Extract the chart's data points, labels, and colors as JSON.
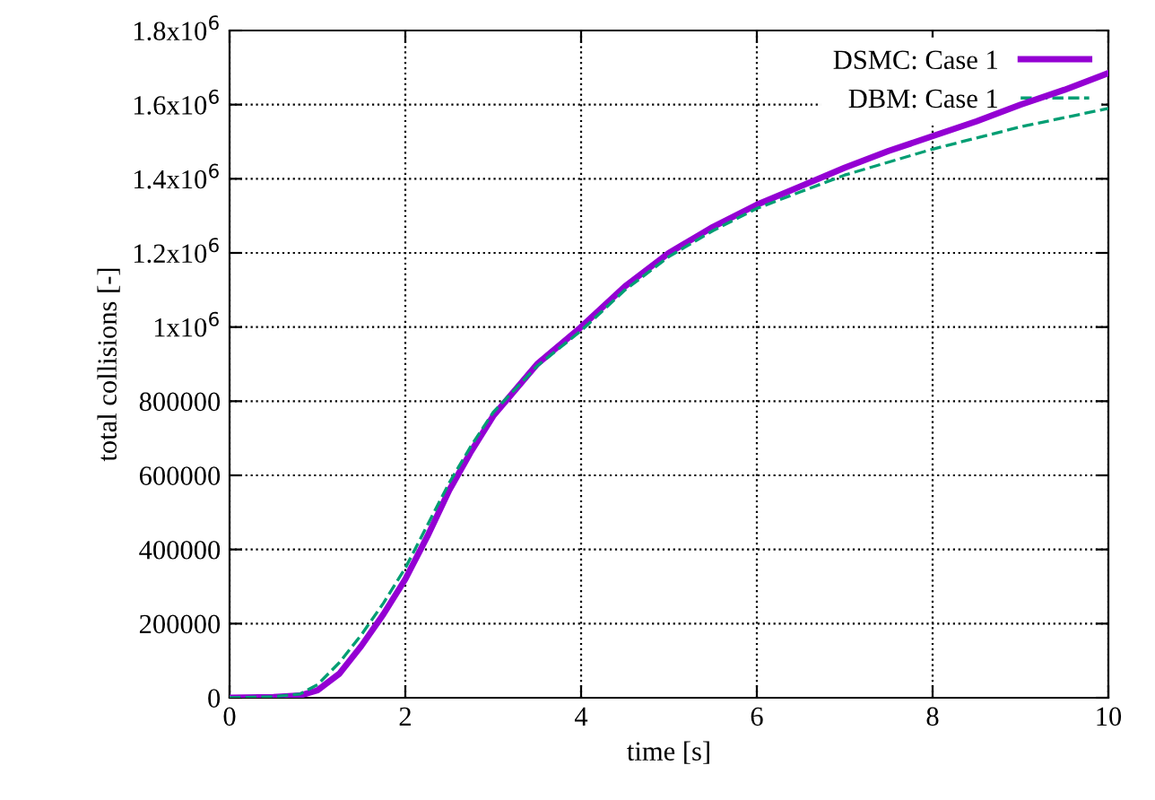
{
  "chart_data": {
    "type": "line",
    "xlabel": "time [s]",
    "ylabel": "total collisions [-]",
    "xlim": [
      0,
      10
    ],
    "xticks": [
      0,
      2,
      4,
      6,
      8,
      10
    ],
    "ylim": [
      0,
      1800000
    ],
    "yticks": [
      0,
      200000,
      400000,
      600000,
      800000,
      {
        "value": 1000000,
        "label": "1x10$^{6}$"
      },
      {
        "value": 1200000,
        "label": "1.2x10$^{6}$"
      },
      {
        "value": 1400000,
        "label": "1.4x10$^{6}$"
      },
      {
        "value": 1600000,
        "label": "1.6x10$^{6}$"
      },
      {
        "value": 1800000,
        "label": "1.8x10$^{6}$"
      }
    ],
    "grid": true,
    "legend": "top right",
    "series": [
      {
        "name": "DSMC: Case 1",
        "color": "#9400d3",
        "line_style": "solid",
        "x": [
          0,
          0.5,
          0.8,
          1,
          1.25,
          1.5,
          1.75,
          2,
          2.25,
          2.5,
          2.75,
          3,
          3.5,
          4,
          4.5,
          5,
          5.5,
          6,
          6.5,
          7,
          7.5,
          8,
          8.5,
          9,
          9.5,
          10
        ],
        "values": [
          0,
          2000,
          6000,
          20000,
          65000,
          140000,
          225000,
          320000,
          435000,
          560000,
          665000,
          760000,
          900000,
          1000000,
          1110000,
          1200000,
          1270000,
          1330000,
          1380000,
          1430000,
          1475000,
          1515000,
          1555000,
          1600000,
          1640000,
          1685000
        ]
      },
      {
        "name": "DBM: Case 1",
        "color": "#009e73",
        "line_style": "dashed",
        "x": [
          0,
          0.5,
          0.8,
          1,
          1.25,
          1.5,
          1.75,
          2,
          2.25,
          2.5,
          2.75,
          3,
          3.5,
          4,
          4.5,
          5,
          5.5,
          6,
          6.5,
          7,
          7.5,
          8,
          8.5,
          9,
          9.5,
          10
        ],
        "values": [
          0,
          3000,
          10000,
          35000,
          95000,
          170000,
          255000,
          350000,
          465000,
          580000,
          680000,
          770000,
          895000,
          990000,
          1100000,
          1190000,
          1260000,
          1320000,
          1365000,
          1410000,
          1445000,
          1480000,
          1510000,
          1540000,
          1565000,
          1590000
        ]
      }
    ]
  }
}
